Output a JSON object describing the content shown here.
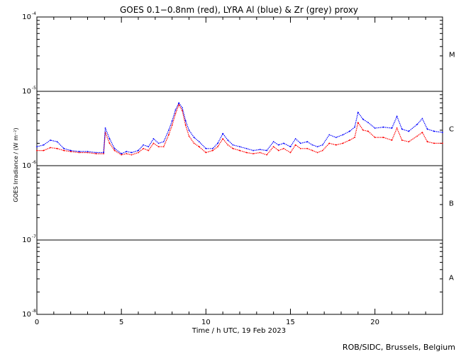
{
  "chart_data": {
    "type": "line",
    "title": "GOES 0.1−0.8nm (red), LYRA Al (blue) & Zr (grey) proxy",
    "xlabel": "Time / h UTC, 19 Feb 2023",
    "ylabel": "GOES Irradiance / (W m⁻²)",
    "xlim": [
      0,
      24
    ],
    "ylim": [
      1e-08,
      0.0001
    ],
    "yscale": "log",
    "x_ticks": [
      0,
      5,
      10,
      15,
      20
    ],
    "x_tick_labels": [
      "0",
      "5",
      "10",
      "15",
      "20"
    ],
    "y_ticks": [
      {
        "value": 1e-08,
        "mantissa": "10",
        "exp": "-8"
      },
      {
        "value": 1e-07,
        "mantissa": "10",
        "exp": "-7"
      },
      {
        "value": 1e-06,
        "mantissa": "10",
        "exp": "-6"
      },
      {
        "value": 1e-05,
        "mantissa": "10",
        "exp": "-5"
      },
      {
        "value": 0.0001,
        "mantissa": "10",
        "exp": "-4"
      }
    ],
    "flare_class_lines": [
      1e-07,
      1e-06,
      1e-05
    ],
    "flare_classes": [
      {
        "label": "M",
        "low": 1e-05,
        "high": 0.0001
      },
      {
        "label": "C",
        "low": 1e-06,
        "high": 1e-05
      },
      {
        "label": "B",
        "low": 1e-07,
        "high": 1e-06
      },
      {
        "label": "A",
        "low": 1e-08,
        "high": 1e-07
      }
    ],
    "series": [
      {
        "color": "#ff0000",
        "x": [
          0,
          0.4,
          0.8,
          1.2,
          1.6,
          2.0,
          2.5,
          3.0,
          3.5,
          3.95,
          4.05,
          4.3,
          4.6,
          5.0,
          5.3,
          5.6,
          6.0,
          6.3,
          6.6,
          6.9,
          7.2,
          7.5,
          7.8,
          8.0,
          8.2,
          8.4,
          8.6,
          8.8,
          9.0,
          9.3,
          9.6,
          10.0,
          10.4,
          10.7,
          11.0,
          11.3,
          11.6,
          12.0,
          12.4,
          12.8,
          13.2,
          13.6,
          14.0,
          14.3,
          14.6,
          15.0,
          15.3,
          15.6,
          16.0,
          16.3,
          16.6,
          16.9,
          17.3,
          17.7,
          18.1,
          18.5,
          18.8,
          19.0,
          19.3,
          19.6,
          20.0,
          20.5,
          21.0,
          21.3,
          21.6,
          22.0,
          22.5,
          22.8,
          23.1,
          23.5,
          24.0
        ],
        "y": [
          1.6e-06,
          1.6e-06,
          1.75e-06,
          1.7e-06,
          1.6e-06,
          1.55e-06,
          1.5e-06,
          1.5e-06,
          1.45e-06,
          1.45e-06,
          2.8e-06,
          2e-06,
          1.6e-06,
          1.4e-06,
          1.45e-06,
          1.4e-06,
          1.5e-06,
          1.7e-06,
          1.6e-06,
          2e-06,
          1.8e-06,
          1.8e-06,
          2.6e-06,
          3.5e-06,
          5e-06,
          6.6e-06,
          5.5e-06,
          3.5e-06,
          2.5e-06,
          2e-06,
          1.8e-06,
          1.5e-06,
          1.6e-06,
          1.8e-06,
          2.3e-06,
          1.9e-06,
          1.7e-06,
          1.6e-06,
          1.5e-06,
          1.45e-06,
          1.5e-06,
          1.4e-06,
          1.8e-06,
          1.6e-06,
          1.7e-06,
          1.5e-06,
          1.9e-06,
          1.7e-06,
          1.7e-06,
          1.6e-06,
          1.5e-06,
          1.6e-06,
          2e-06,
          1.9e-06,
          2e-06,
          2.2e-06,
          2.4e-06,
          3.8e-06,
          3e-06,
          2.9e-06,
          2.4e-06,
          2.4e-06,
          2.2e-06,
          3.2e-06,
          2.2e-06,
          2.1e-06,
          2.5e-06,
          2.8e-06,
          2.1e-06,
          2e-06,
          2e-06
        ]
      },
      {
        "color": "#0000ff",
        "x": [
          0,
          0.4,
          0.8,
          1.2,
          1.6,
          2.0,
          2.5,
          3.0,
          3.5,
          3.95,
          4.05,
          4.3,
          4.6,
          5.0,
          5.3,
          5.6,
          6.0,
          6.3,
          6.6,
          6.9,
          7.2,
          7.5,
          7.8,
          8.0,
          8.2,
          8.4,
          8.6,
          8.8,
          9.0,
          9.3,
          9.6,
          10.0,
          10.4,
          10.7,
          11.0,
          11.3,
          11.6,
          12.0,
          12.4,
          12.8,
          13.2,
          13.6,
          14.0,
          14.3,
          14.6,
          15.0,
          15.3,
          15.6,
          16.0,
          16.3,
          16.6,
          16.9,
          17.3,
          17.7,
          18.1,
          18.5,
          18.8,
          19.0,
          19.3,
          19.6,
          20.0,
          20.5,
          21.0,
          21.3,
          21.6,
          22.0,
          22.5,
          22.8,
          23.1,
          23.5,
          24.0
        ],
        "y": [
          1.8e-06,
          1.9e-06,
          2.2e-06,
          2.1e-06,
          1.7e-06,
          1.6e-06,
          1.55e-06,
          1.55e-06,
          1.5e-06,
          1.5e-06,
          3.2e-06,
          2.3e-06,
          1.7e-06,
          1.45e-06,
          1.55e-06,
          1.5e-06,
          1.6e-06,
          1.9e-06,
          1.8e-06,
          2.3e-06,
          2e-06,
          2.1e-06,
          3e-06,
          4e-06,
          5.6e-06,
          7e-06,
          6e-06,
          4e-06,
          3e-06,
          2.4e-06,
          2.1e-06,
          1.7e-06,
          1.7e-06,
          2e-06,
          2.7e-06,
          2.2e-06,
          1.9e-06,
          1.8e-06,
          1.7e-06,
          1.6e-06,
          1.65e-06,
          1.6e-06,
          2.1e-06,
          1.9e-06,
          2e-06,
          1.8e-06,
          2.3e-06,
          2e-06,
          2.1e-06,
          1.9e-06,
          1.8e-06,
          1.9e-06,
          2.6e-06,
          2.4e-06,
          2.6e-06,
          2.9e-06,
          3.3e-06,
          5.2e-06,
          4.2e-06,
          3.8e-06,
          3.2e-06,
          3.3e-06,
          3.2e-06,
          4.6e-06,
          3.1e-06,
          2.9e-06,
          3.6e-06,
          4.3e-06,
          3.1e-06,
          2.9e-06,
          2.8e-06
        ]
      }
    ]
  },
  "credit": "ROB/SIDC, Brussels, Belgium"
}
